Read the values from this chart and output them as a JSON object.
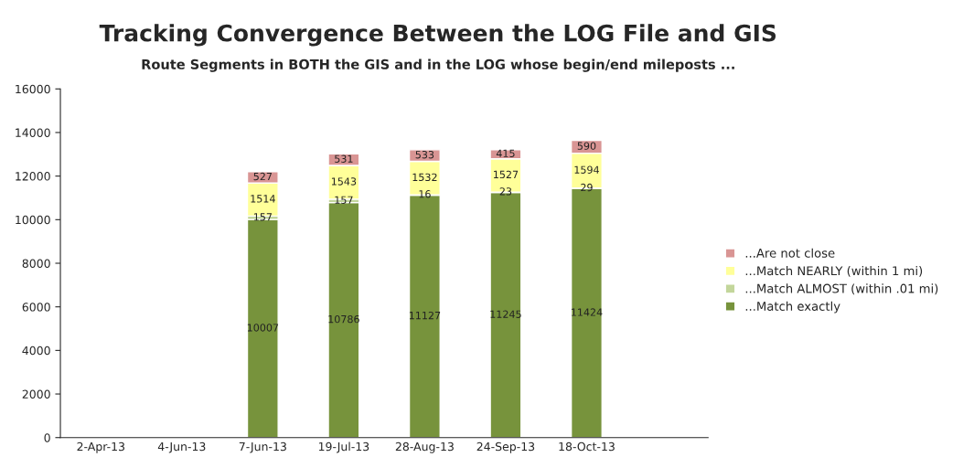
{
  "chart_data": {
    "type": "bar",
    "title": "Tracking Convergence Between the LOG File and GIS",
    "subtitle": "Route Segments in BOTH the GIS and in the LOG whose begin/end mileposts ...",
    "categories": [
      "2-Apr-13",
      "4-Jun-13",
      "7-Jun-13",
      "19-Jul-13",
      "28-Aug-13",
      "24-Sep-13",
      "18-Oct-13",
      null
    ],
    "stacked": true,
    "data_labels": true,
    "legend": "right",
    "grid": false,
    "ylim": [
      0,
      16000
    ],
    "yticks": [
      0,
      2000,
      4000,
      6000,
      8000,
      10000,
      12000,
      14000,
      16000
    ],
    "series": [
      {
        "name": "...Match exactly",
        "color": "#77933c",
        "values": [
          null,
          null,
          10007,
          10786,
          11127,
          11245,
          11424,
          null
        ]
      },
      {
        "name": "...Match ALMOST (within .01 mi)",
        "color": "#c3d69b",
        "values": [
          null,
          null,
          157,
          157,
          16,
          23,
          29,
          null
        ]
      },
      {
        "name": "...Match NEARLY (within 1 mi)",
        "color": "#ffff99",
        "values": [
          null,
          null,
          1514,
          1543,
          1532,
          1527,
          1594,
          null
        ]
      },
      {
        "name": "...Are not close",
        "color": "#d99594",
        "values": [
          null,
          null,
          527,
          531,
          533,
          415,
          590,
          null
        ]
      }
    ]
  }
}
